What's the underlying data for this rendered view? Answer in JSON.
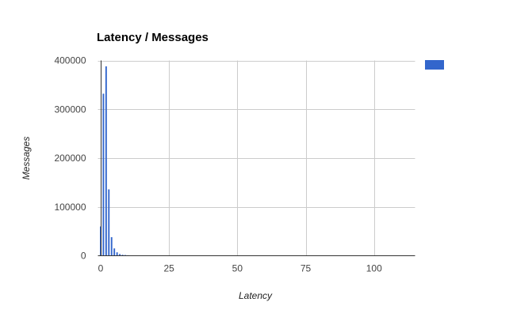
{
  "chart_data": {
    "type": "bar",
    "title": "Latency / Messages",
    "xlabel": "Latency",
    "ylabel": "Messages",
    "xlim": [
      -1,
      115
    ],
    "ylim": [
      0,
      400000
    ],
    "x_ticks": [
      0,
      25,
      50,
      75,
      100
    ],
    "y_ticks": [
      0,
      100000,
      200000,
      300000,
      400000
    ],
    "grid": true,
    "legend": "top-right",
    "series": [
      {
        "color": "#3366cc",
        "x": [
          0,
          1,
          2,
          3,
          4,
          5,
          6,
          7,
          8,
          9,
          10,
          11,
          12
        ],
        "values": [
          60000,
          332000,
          388000,
          136000,
          38000,
          15000,
          7000,
          3500,
          2000,
          1500,
          1000,
          700,
          500
        ]
      }
    ]
  }
}
